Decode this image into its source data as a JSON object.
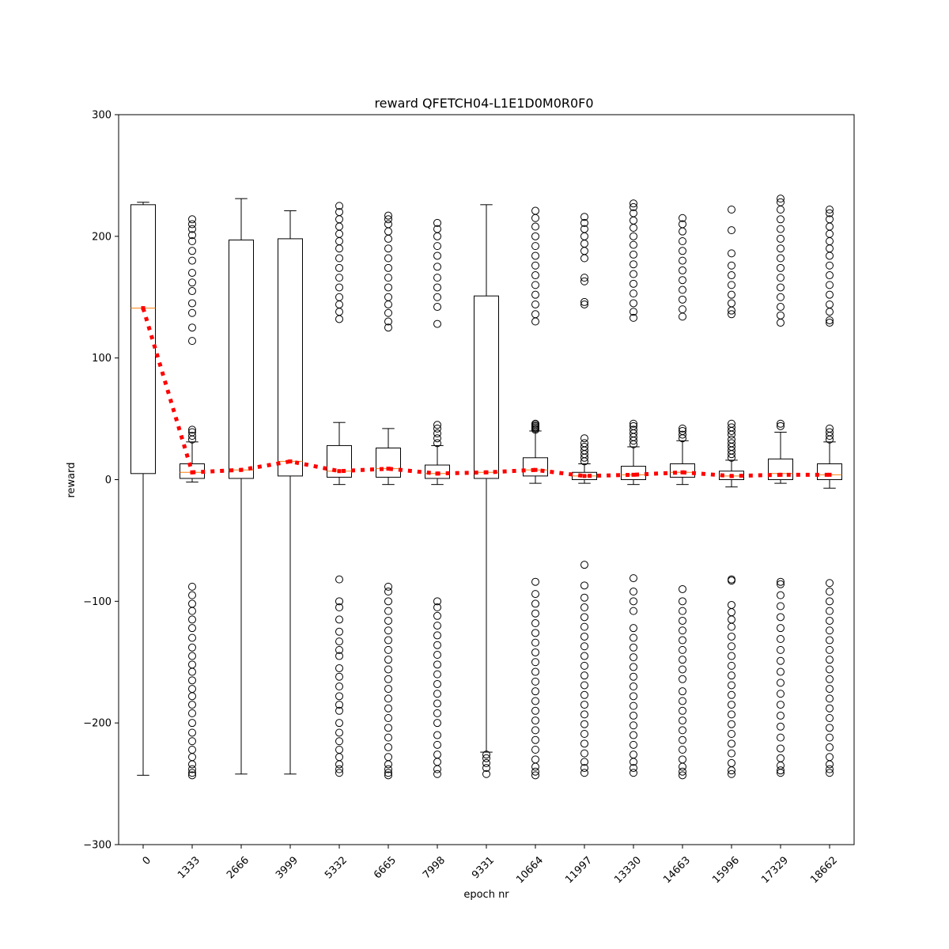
{
  "chart_data": {
    "type": "box",
    "title": "reward QFETCH04-L1E1D0M0R0F0",
    "xlabel": "epoch nr",
    "ylabel": "reward",
    "ylim": [
      -300,
      300
    ],
    "yticks": [
      -300,
      -200,
      -100,
      0,
      100,
      200,
      300
    ],
    "ytick_labels": [
      "−300",
      "−200",
      "−100",
      "0",
      "100",
      "200",
      "300"
    ],
    "grid": false,
    "categories": [
      "0",
      "1333",
      "2666",
      "3999",
      "5332",
      "6665",
      "7998",
      "9331",
      "10664",
      "11997",
      "13330",
      "14663",
      "15996",
      "17329",
      "18662"
    ],
    "boxes": [
      {
        "label": "0",
        "whislo": -243,
        "q1": 5,
        "med": 141,
        "q3": 226,
        "whishi": 228,
        "fliers_low": [],
        "fliers_high": []
      },
      {
        "label": "1333",
        "whislo": -2,
        "q1": 1,
        "med": 6,
        "q3": 13,
        "whishi": 31,
        "fliers_low": [
          -88,
          -95,
          -102,
          -108,
          -115,
          -122,
          -130,
          -138,
          -145,
          -152,
          -158,
          -165,
          -172,
          -178,
          -185,
          -192,
          -200,
          -208,
          -215,
          -222,
          -228,
          -234,
          -238,
          -241,
          -243
        ],
        "fliers_high": [
          33,
          36,
          39,
          41,
          114,
          125,
          137,
          145,
          155,
          162,
          170,
          180,
          188,
          196,
          201,
          206,
          210,
          214
        ]
      },
      {
        "label": "2666",
        "whislo": -242,
        "q1": 1,
        "med": 8,
        "q3": 197,
        "whishi": 231,
        "fliers_low": [],
        "fliers_high": []
      },
      {
        "label": "3999",
        "whislo": -242,
        "q1": 3,
        "med": 15,
        "q3": 198,
        "whishi": 221,
        "fliers_low": [],
        "fliers_high": []
      },
      {
        "label": "5332",
        "whislo": -4,
        "q1": 2,
        "med": 7,
        "q3": 28,
        "whishi": 47,
        "fliers_low": [
          -82,
          -100,
          -105,
          -115,
          -125,
          -133,
          -140,
          -145,
          -155,
          -162,
          -170,
          -178,
          -185,
          -190,
          -200,
          -208,
          -215,
          -222,
          -228,
          -234,
          -238,
          -241
        ],
        "fliers_high": [
          132,
          138,
          144,
          150,
          158,
          166,
          174,
          182,
          190,
          196,
          202,
          208,
          214,
          220,
          225
        ]
      },
      {
        "label": "6665",
        "whislo": -4,
        "q1": 2,
        "med": 9,
        "q3": 26,
        "whishi": 42,
        "fliers_low": [
          -88,
          -92,
          -100,
          -108,
          -116,
          -124,
          -132,
          -140,
          -148,
          -156,
          -164,
          -172,
          -180,
          -188,
          -196,
          -204,
          -212,
          -220,
          -228,
          -234,
          -238,
          -241,
          -243
        ],
        "fliers_high": [
          125,
          130,
          137,
          144,
          150,
          158,
          166,
          174,
          182,
          190,
          198,
          204,
          210,
          214,
          217
        ]
      },
      {
        "label": "7998",
        "whislo": -4,
        "q1": 1,
        "med": 5,
        "q3": 12,
        "whishi": 28,
        "fliers_low": [
          -100,
          -105,
          -112,
          -120,
          -128,
          -136,
          -144,
          -152,
          -160,
          -168,
          -176,
          -184,
          -192,
          -200,
          -210,
          -218,
          -226,
          -232,
          -238,
          -242
        ],
        "fliers_high": [
          30,
          34,
          38,
          42,
          45,
          128,
          142,
          150,
          158,
          166,
          175,
          184,
          192,
          200,
          206,
          211
        ]
      },
      {
        "label": "9331",
        "whislo": -224,
        "q1": 1,
        "med": 6,
        "q3": 151,
        "whishi": 226,
        "fliers_low": [
          -226,
          -229,
          -233,
          -237,
          -242
        ],
        "fliers_high": []
      },
      {
        "label": "10664",
        "whislo": -3,
        "q1": 3,
        "med": 8,
        "q3": 18,
        "whishi": 40,
        "fliers_low": [
          -84,
          -94,
          -102,
          -110,
          -118,
          -126,
          -134,
          -142,
          -150,
          -158,
          -166,
          -174,
          -182,
          -190,
          -198,
          -206,
          -214,
          -222,
          -230,
          -236,
          -240,
          -243
        ],
        "fliers_high": [
          41,
          42,
          43,
          44,
          45,
          46,
          130,
          136,
          144,
          152,
          160,
          168,
          176,
          184,
          192,
          200,
          208,
          215,
          221
        ]
      },
      {
        "label": "11997",
        "whislo": -3,
        "q1": 0,
        "med": 3,
        "q3": 6,
        "whishi": 13,
        "fliers_low": [
          -70,
          -87,
          -97,
          -105,
          -113,
          -121,
          -129,
          -137,
          -145,
          -153,
          -161,
          -169,
          -177,
          -185,
          -193,
          -201,
          -209,
          -217,
          -225,
          -232,
          -237,
          -241
        ],
        "fliers_high": [
          15,
          18,
          21,
          24,
          27,
          30,
          34,
          144,
          146,
          163,
          166,
          182,
          188,
          194,
          200,
          206,
          211,
          216
        ]
      },
      {
        "label": "13330",
        "whislo": -4,
        "q1": 0,
        "med": 4,
        "q3": 11,
        "whishi": 27,
        "fliers_low": [
          -81,
          -92,
          -100,
          -108,
          -122,
          -130,
          -138,
          -146,
          -154,
          -162,
          -170,
          -178,
          -186,
          -194,
          -202,
          -210,
          -218,
          -226,
          -232,
          -237,
          -241
        ],
        "fliers_high": [
          29,
          32,
          35,
          38,
          41,
          44,
          46,
          133,
          138,
          145,
          153,
          161,
          169,
          177,
          185,
          193,
          200,
          207,
          213,
          219,
          224,
          227
        ]
      },
      {
        "label": "14663",
        "whislo": -4,
        "q1": 2,
        "med": 6,
        "q3": 13,
        "whishi": 32,
        "fliers_low": [
          -90,
          -100,
          -108,
          -116,
          -124,
          -132,
          -140,
          -148,
          -156,
          -164,
          -174,
          -182,
          -190,
          -198,
          -206,
          -214,
          -222,
          -230,
          -236,
          -240,
          -243
        ],
        "fliers_high": [
          34,
          37,
          40,
          42,
          134,
          140,
          148,
          156,
          164,
          172,
          180,
          188,
          196,
          204,
          210,
          215
        ]
      },
      {
        "label": "15996",
        "whislo": -6,
        "q1": 0,
        "med": 3,
        "q3": 7,
        "whishi": 16,
        "fliers_low": [
          -82,
          -83,
          -103,
          -109,
          -115,
          -121,
          -129,
          -137,
          -145,
          -153,
          -161,
          -169,
          -177,
          -185,
          -193,
          -201,
          -209,
          -217,
          -225,
          -233,
          -239,
          -242
        ],
        "fliers_high": [
          18,
          21,
          24,
          27,
          30,
          33,
          37,
          40,
          43,
          46,
          136,
          139,
          145,
          152,
          160,
          168,
          176,
          186,
          205,
          222
        ]
      },
      {
        "label": "17329",
        "whislo": -3,
        "q1": 0,
        "med": 5,
        "q3": 17,
        "whishi": 39,
        "fliers_low": [
          -84,
          -86,
          -95,
          -104,
          -113,
          -122,
          -131,
          -140,
          -149,
          -158,
          -167,
          -176,
          -185,
          -194,
          -203,
          -212,
          -221,
          -229,
          -235,
          -239,
          -241
        ],
        "fliers_high": [
          44,
          46,
          129,
          135,
          142,
          150,
          158,
          166,
          174,
          182,
          190,
          198,
          206,
          214,
          222,
          228,
          231
        ]
      },
      {
        "label": "18662",
        "whislo": -7,
        "q1": 0,
        "med": 4,
        "q3": 13,
        "whishi": 31,
        "fliers_low": [
          -85,
          -92,
          -100,
          -108,
          -116,
          -124,
          -132,
          -140,
          -148,
          -156,
          -164,
          -172,
          -180,
          -188,
          -196,
          -204,
          -212,
          -220,
          -228,
          -234,
          -238,
          -241
        ],
        "fliers_high": [
          33,
          36,
          39,
          42,
          129,
          131,
          138,
          144,
          152,
          160,
          168,
          176,
          184,
          190,
          196,
          202,
          208,
          214,
          219,
          222
        ]
      }
    ],
    "mean_line": {
      "values": [
        141,
        6,
        8,
        15,
        7,
        9,
        5,
        6,
        8,
        3,
        4,
        6,
        3,
        4,
        4
      ],
      "color": "#ff0000",
      "style": "dotted"
    },
    "colors": {
      "box_edge": "#000000",
      "median": "#ff7f0e",
      "mean_line": "#ff0000",
      "flier_edge": "#000000"
    }
  }
}
